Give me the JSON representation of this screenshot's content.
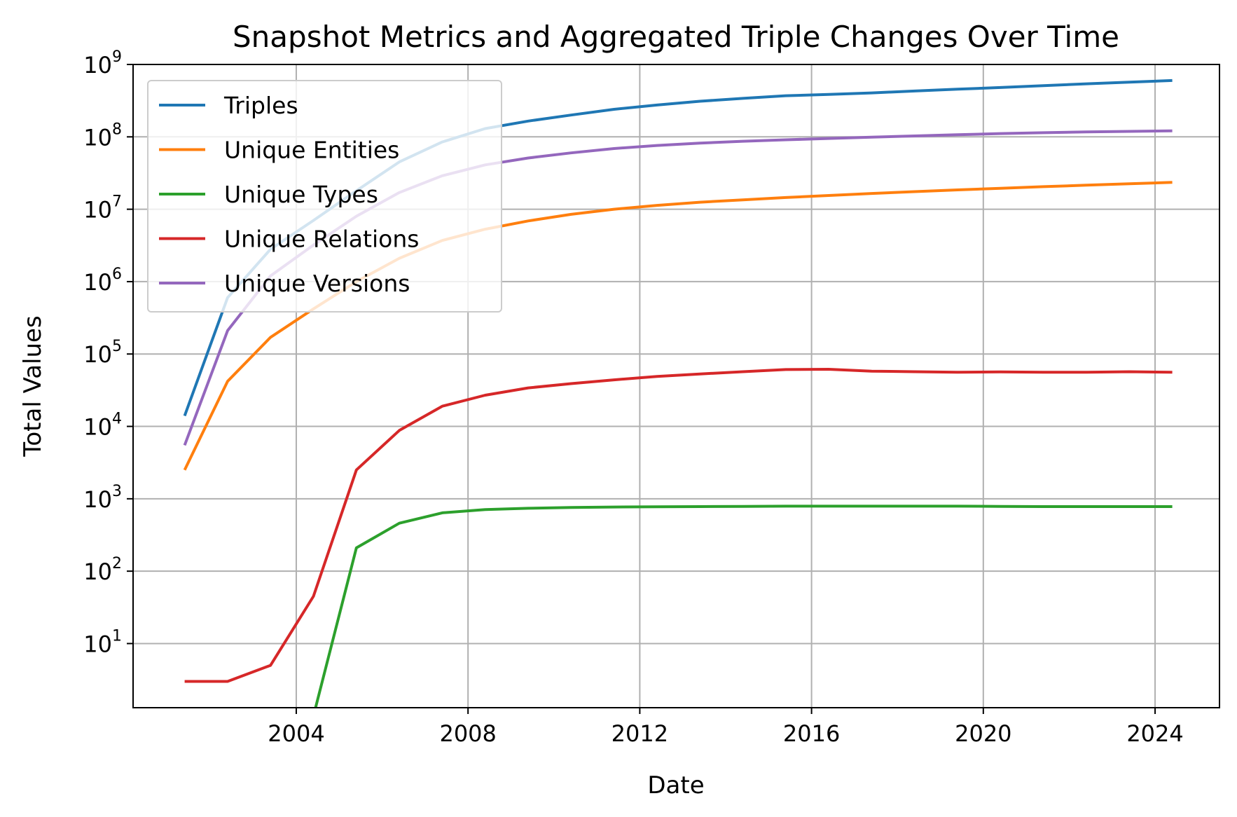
{
  "chart_data": {
    "type": "line",
    "title": "Snapshot Metrics and Aggregated Triple Changes Over Time",
    "xlabel": "Date",
    "ylabel": "Total Values",
    "yscale": "log",
    "grid": true,
    "legend": "upper-left",
    "xlim": [
      2000.2,
      2025.5
    ],
    "ylim": [
      1.3,
      1000000000
    ],
    "xticks": [
      2004,
      2008,
      2012,
      2016,
      2020,
      2024
    ],
    "yticks": [
      {
        "value": 10,
        "base": "10",
        "exp": "1"
      },
      {
        "value": 100,
        "base": "10",
        "exp": "2"
      },
      {
        "value": 1000,
        "base": "10",
        "exp": "3"
      },
      {
        "value": 10000,
        "base": "10",
        "exp": "4"
      },
      {
        "value": 100000,
        "base": "10",
        "exp": "5"
      },
      {
        "value": 1000000,
        "base": "10",
        "exp": "6"
      },
      {
        "value": 10000000,
        "base": "10",
        "exp": "7"
      },
      {
        "value": 100000000,
        "base": "10",
        "exp": "8"
      },
      {
        "value": 1000000000,
        "base": "10",
        "exp": "9"
      }
    ],
    "x": [
      2001.4,
      2002.4,
      2003.4,
      2004.4,
      2005.4,
      2006.4,
      2007.4,
      2008.4,
      2009.4,
      2010.4,
      2011.4,
      2012.4,
      2013.4,
      2014.4,
      2015.4,
      2016.4,
      2017.4,
      2018.4,
      2019.4,
      2020.4,
      2021.4,
      2022.4,
      2023.4,
      2024.4
    ],
    "series": [
      {
        "name": "Triples",
        "color": "#1f77b4",
        "values": [
          14000,
          600000,
          2800000,
          7000000,
          18000000,
          45000000,
          85000000,
          130000000,
          165000000,
          200000000,
          240000000,
          275000000,
          310000000,
          340000000,
          370000000,
          385000000,
          405000000,
          430000000,
          455000000,
          480000000,
          510000000,
          540000000,
          570000000,
          600000000
        ]
      },
      {
        "name": "Unique Entities",
        "color": "#ff7f0e",
        "values": [
          2500,
          42000,
          170000,
          420000,
          1000000,
          2100000,
          3700000,
          5300000,
          6900000,
          8500000,
          10000000,
          11300000,
          12500000,
          13500000,
          14500000,
          15500000,
          16500000,
          17500000,
          18500000,
          19500000,
          20500000,
          21500000,
          22500000,
          23500000
        ]
      },
      {
        "name": "Unique Types",
        "color": "#2ca02c",
        "values": [
          null,
          null,
          null,
          1,
          210,
          460,
          640,
          710,
          740,
          760,
          770,
          775,
          780,
          785,
          790,
          790,
          790,
          790,
          790,
          785,
          780,
          780,
          780,
          780
        ]
      },
      {
        "name": "Unique Relations",
        "color": "#d62728",
        "values": [
          3,
          3,
          5,
          45,
          2500,
          8800,
          19000,
          27000,
          34000,
          39000,
          44000,
          49000,
          53000,
          57000,
          61000,
          61500,
          58000,
          57000,
          56000,
          56500,
          56000,
          56000,
          57000,
          56000
        ]
      },
      {
        "name": "Unique Versions",
        "color": "#9467bd",
        "values": [
          5500,
          210000,
          1200000,
          3200000,
          8000000,
          17000000,
          29000000,
          41000000,
          51000000,
          60000000,
          69000000,
          76000000,
          82000000,
          87000000,
          91000000,
          95000000,
          99000000,
          103000000,
          107000000,
          111000000,
          114000000,
          117000000,
          119000000,
          121000000
        ]
      }
    ]
  }
}
